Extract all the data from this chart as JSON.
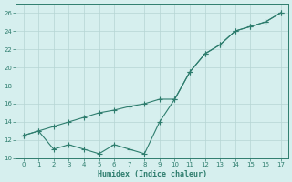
{
  "xlabel": "Humidex (Indice chaleur)",
  "x": [
    0,
    1,
    2,
    3,
    4,
    5,
    6,
    7,
    8,
    9,
    10,
    11,
    12,
    13,
    14,
    15,
    16,
    17
  ],
  "line1_y": [
    12.5,
    13.0,
    13.5,
    14.0,
    14.5,
    15.0,
    15.3,
    15.7,
    16.0,
    16.5,
    16.5,
    19.5,
    21.5,
    22.5,
    24.0,
    24.5,
    25.0,
    26.0
  ],
  "line2_y": [
    12.5,
    13.0,
    11.0,
    11.5,
    11.0,
    10.5,
    11.5,
    11.0,
    10.5,
    14.0,
    16.5,
    19.5,
    21.5,
    22.5,
    24.0,
    24.5,
    25.0,
    26.0
  ],
  "color": "#2e7d6e",
  "bg_color": "#d6efee",
  "grid_color": "#b5d5d3",
  "ylim": [
    10,
    27
  ],
  "xlim": [
    -0.5,
    17.5
  ],
  "xticks": [
    0,
    1,
    2,
    3,
    4,
    5,
    6,
    7,
    8,
    9,
    10,
    11,
    12,
    13,
    14,
    15,
    16,
    17
  ],
  "yticks": [
    10,
    12,
    14,
    16,
    18,
    20,
    22,
    24,
    26
  ],
  "figsize": [
    3.2,
    2.0
  ],
  "dpi": 100
}
